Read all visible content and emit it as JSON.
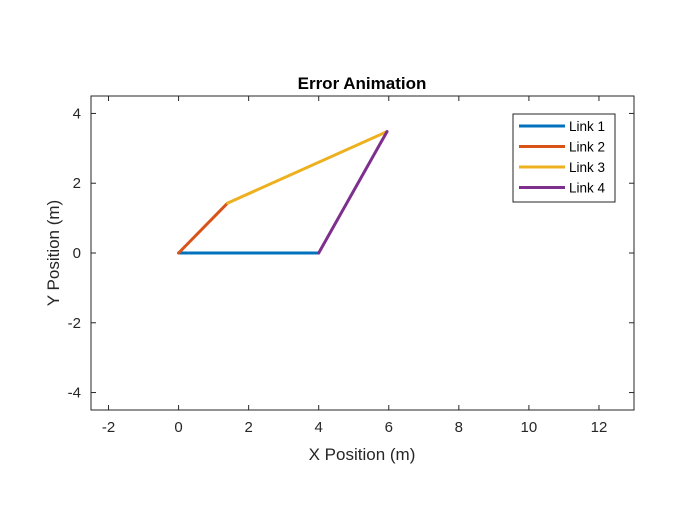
{
  "chart_data": {
    "type": "line",
    "title": "Error Animation",
    "xlabel": "X Position (m)",
    "ylabel": "Y Position (m)",
    "xlim": [
      -2.5,
      13
    ],
    "ylim": [
      -4.5,
      4.5
    ],
    "xticks": [
      -2,
      0,
      2,
      4,
      6,
      8,
      10,
      12
    ],
    "yticks": [
      -4,
      -2,
      0,
      2,
      4
    ],
    "grid": false,
    "legend_position": "top-right",
    "series": [
      {
        "name": "Link 1",
        "color": "#0072BD",
        "x": [
          0,
          4
        ],
        "y": [
          0,
          0
        ]
      },
      {
        "name": "Link 2",
        "color": "#D95319",
        "x": [
          0,
          1.4
        ],
        "y": [
          0,
          1.43
        ]
      },
      {
        "name": "Link 3",
        "color": "#EDB120",
        "x": [
          1.4,
          5.95
        ],
        "y": [
          1.43,
          3.48
        ]
      },
      {
        "name": "Link 4",
        "color": "#7E2F8E",
        "x": [
          4,
          5.95
        ],
        "y": [
          0,
          3.48
        ]
      }
    ]
  }
}
